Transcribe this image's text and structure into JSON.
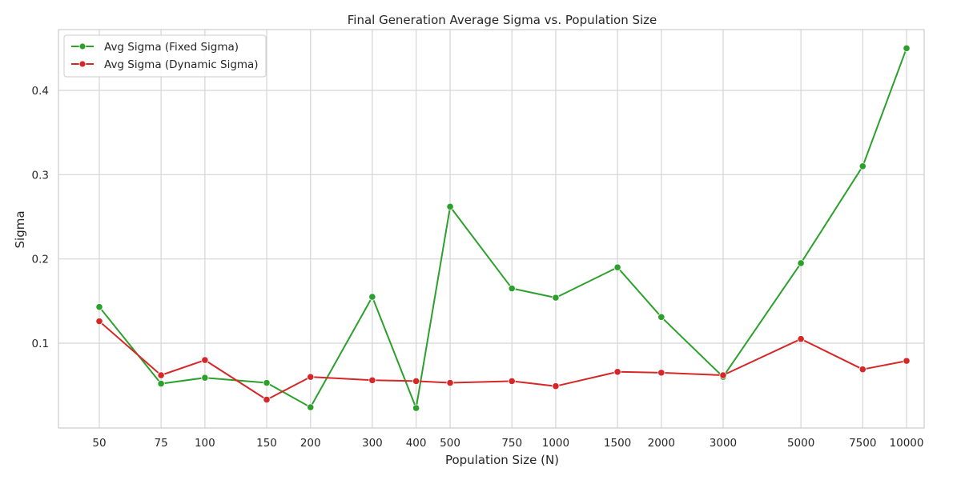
{
  "chart_data": {
    "type": "line",
    "title": "Final Generation Average Sigma vs. Population Size",
    "xlabel": "Population Size (N)",
    "ylabel": "Sigma",
    "xscale": "log",
    "x": [
      50,
      75,
      100,
      150,
      200,
      300,
      400,
      500,
      750,
      1000,
      1500,
      2000,
      3000,
      5000,
      7500,
      10000
    ],
    "xticks": [
      "50",
      "75",
      "100",
      "150",
      "200",
      "300",
      "400",
      "500",
      "750",
      "1000",
      "1500",
      "2000",
      "3000",
      "5000",
      "7500",
      "10000"
    ],
    "yticks": [
      "0.1",
      "0.2",
      "0.3",
      "0.4"
    ],
    "ylim": [
      0.0,
      0.47
    ],
    "grid": true,
    "legend_position": "top-left",
    "series": [
      {
        "name": "Avg Sigma (Fixed Sigma)",
        "color": "#2ca02c",
        "values": [
          0.143,
          0.052,
          0.059,
          0.053,
          0.024,
          0.155,
          0.023,
          0.262,
          0.165,
          0.154,
          0.19,
          0.131,
          0.06,
          0.195,
          0.31,
          0.45
        ]
      },
      {
        "name": "Avg Sigma (Dynamic Sigma)",
        "color": "#d62728",
        "values": [
          0.126,
          0.062,
          0.08,
          0.033,
          0.06,
          0.056,
          0.055,
          0.053,
          0.055,
          0.049,
          0.066,
          0.065,
          0.062,
          0.105,
          0.069,
          0.079
        ]
      }
    ]
  }
}
